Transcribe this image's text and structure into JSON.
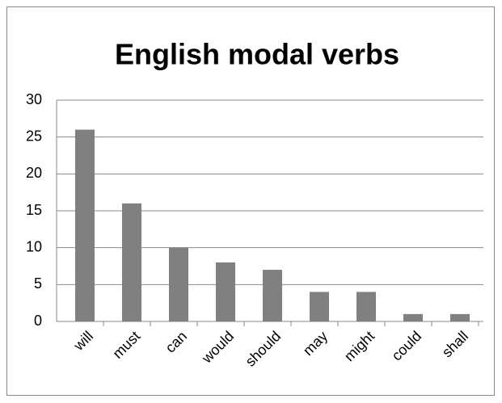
{
  "chart_data": {
    "type": "bar",
    "title": "English modal verbs",
    "categories": [
      "will",
      "must",
      "can",
      "would",
      "should",
      "may",
      "might",
      "could",
      "shall"
    ],
    "values": [
      26,
      16,
      10,
      8,
      7,
      4,
      4,
      1,
      1
    ],
    "color": "#808080",
    "ylim": [
      0,
      30
    ],
    "yticks": [
      0,
      5,
      10,
      15,
      20,
      25,
      30
    ],
    "grid": true
  }
}
